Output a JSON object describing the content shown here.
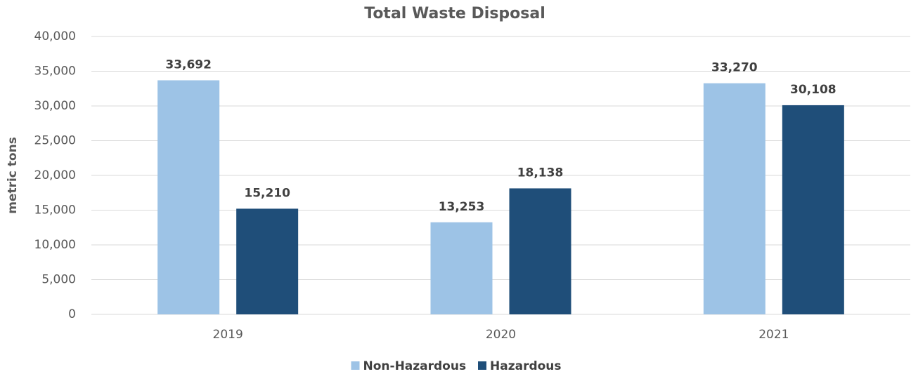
{
  "chart_data": {
    "type": "bar",
    "title": "Total Waste Disposal",
    "y_label": "metric tons",
    "categories": [
      "2019",
      "2020",
      "2021"
    ],
    "series": [
      {
        "name": "Non-Hazardous",
        "color": "#9dc3e6",
        "values": [
          33692,
          13253,
          33270
        ],
        "value_labels": [
          "33,692",
          "13,253",
          "33,270"
        ]
      },
      {
        "name": "Hazardous",
        "color": "#1f4e79",
        "values": [
          15210,
          18138,
          30108
        ],
        "value_labels": [
          "15,210",
          "18,138",
          "30,108"
        ]
      }
    ],
    "ylim": [
      0,
      40000
    ],
    "yticks": [
      0,
      {
        "value": 5000,
        "label": "5,000"
      },
      {
        "value": 10000,
        "label": "10,000"
      },
      {
        "value": 15000,
        "label": "15,000"
      },
      {
        "value": 20000,
        "label": "20,000"
      },
      {
        "value": 25000,
        "label": "25,000"
      },
      {
        "value": 30000,
        "label": "30,000"
      },
      {
        "value": 35000,
        "label": "35,000"
      },
      {
        "value": 40000,
        "label": "40,000"
      }
    ],
    "grid": true,
    "legend": "bottom"
  }
}
